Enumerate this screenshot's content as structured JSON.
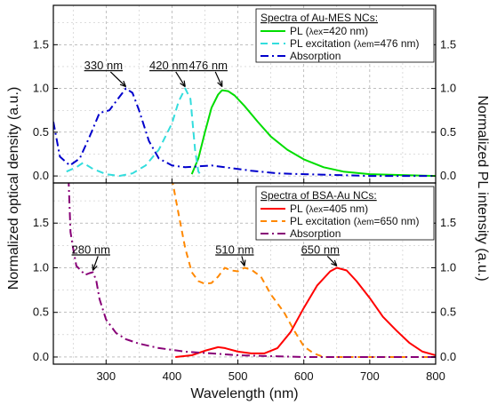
{
  "chart_data": {
    "type": "line",
    "xlabel": "Wavelength (nm)",
    "ylabel_left": "Normalized optical density (a.u.)",
    "ylabel_right": "Normalized PL intensity (a.u.)",
    "xlim": [
      220,
      800
    ],
    "xticks": [
      "300",
      "400",
      "500",
      "600",
      "700",
      "800"
    ],
    "yticks": [
      "0.0",
      "0.5",
      "1.0",
      "1.5"
    ],
    "grid": "dashed",
    "panels": [
      {
        "ylim": [
          -0.08,
          1.95
        ],
        "legend": {
          "title": "Spectra of Au-MES NCs:",
          "placement": "top-right",
          "entries": [
            {
              "pre": "PL (",
              "lam": "λex",
              "post": "=420 nm)"
            },
            {
              "pre": "PL excitation (",
              "lam": "λem",
              "post": "=476 nm)"
            },
            {
              "pre": "Absorption",
              "lam": "",
              "post": ""
            }
          ]
        },
        "annotations": [
          {
            "text": "330 nm",
            "x": 330,
            "y": 1.0,
            "tx": 296,
            "ty": 1.22
          },
          {
            "text": "420 nm",
            "x": 420,
            "y": 1.0,
            "tx": 395,
            "ty": 1.22
          },
          {
            "text": "476 nm",
            "x": 476,
            "y": 1.0,
            "tx": 455,
            "ty": 1.22
          }
        ],
        "series": [
          {
            "color": "#00dd00",
            "dash": "",
            "width": 2,
            "points": [
              [
                430,
                0.02
              ],
              [
                440,
                0.2
              ],
              [
                450,
                0.5
              ],
              [
                460,
                0.78
              ],
              [
                470,
                0.93
              ],
              [
                476,
                0.98
              ],
              [
                485,
                0.97
              ],
              [
                495,
                0.92
              ],
              [
                510,
                0.8
              ],
              [
                530,
                0.62
              ],
              [
                550,
                0.45
              ],
              [
                575,
                0.3
              ],
              [
                600,
                0.19
              ],
              [
                630,
                0.1
              ],
              [
                660,
                0.05
              ],
              [
                700,
                0.02
              ],
              [
                750,
                0.01
              ],
              [
                800,
                0.0
              ]
            ]
          },
          {
            "color": "#33dddd",
            "dash": "8,5",
            "width": 2,
            "points": [
              [
                240,
                0.05
              ],
              [
                255,
                0.1
              ],
              [
                265,
                0.15
              ],
              [
                280,
                0.08
              ],
              [
                300,
                0.02
              ],
              [
                320,
                0.0
              ],
              [
                340,
                0.03
              ],
              [
                360,
                0.12
              ],
              [
                380,
                0.3
              ],
              [
                400,
                0.6
              ],
              [
                410,
                0.85
              ],
              [
                420,
                1.0
              ],
              [
                428,
                0.88
              ],
              [
                435,
                0.3
              ],
              [
                440,
                0.05
              ],
              [
                445,
                0.0
              ]
            ]
          },
          {
            "color": "#0000cc",
            "dash": "9,4,2,4",
            "width": 2,
            "points": [
              [
                220,
                0.62
              ],
              [
                230,
                0.22
              ],
              [
                245,
                0.12
              ],
              [
                260,
                0.2
              ],
              [
                275,
                0.45
              ],
              [
                290,
                0.72
              ],
              [
                305,
                0.75
              ],
              [
                320,
                0.9
              ],
              [
                330,
                1.0
              ],
              [
                340,
                0.95
              ],
              [
                350,
                0.75
              ],
              [
                365,
                0.4
              ],
              [
                380,
                0.2
              ],
              [
                400,
                0.12
              ],
              [
                420,
                0.1
              ],
              [
                440,
                0.11
              ],
              [
                460,
                0.12
              ],
              [
                480,
                0.1
              ],
              [
                520,
                0.06
              ],
              [
                560,
                0.03
              ],
              [
                600,
                0.02
              ],
              [
                650,
                0.01
              ],
              [
                700,
                0.0
              ],
              [
                750,
                0.0
              ],
              [
                800,
                0.0
              ]
            ]
          }
        ]
      },
      {
        "ylim": [
          -0.08,
          1.95
        ],
        "legend": {
          "title": "Spectra of BSA-Au NCs:",
          "placement": "top-right",
          "entries": [
            {
              "pre": "PL (",
              "lam": "λex",
              "post": "=405 nm)"
            },
            {
              "pre": "PL excitation (",
              "lam": "λem",
              "post": "=650 nm)"
            },
            {
              "pre": "Absorption",
              "lam": "",
              "post": ""
            }
          ]
        },
        "annotations": [
          {
            "text": "280 nm",
            "x": 280,
            "y": 0.95,
            "tx": 277,
            "ty": 1.16
          },
          {
            "text": "510 nm",
            "x": 510,
            "y": 1.0,
            "tx": 495,
            "ty": 1.16
          },
          {
            "text": "650 nm",
            "x": 650,
            "y": 1.0,
            "tx": 625,
            "ty": 1.16
          }
        ],
        "series": [
          {
            "color": "#ff0000",
            "dash": "",
            "width": 2,
            "points": [
              [
                405,
                0.0
              ],
              [
                430,
                0.02
              ],
              [
                450,
                0.07
              ],
              [
                470,
                0.11
              ],
              [
                480,
                0.1
              ],
              [
                500,
                0.06
              ],
              [
                520,
                0.04
              ],
              [
                540,
                0.04
              ],
              [
                560,
                0.1
              ],
              [
                580,
                0.28
              ],
              [
                600,
                0.55
              ],
              [
                620,
                0.8
              ],
              [
                640,
                0.96
              ],
              [
                650,
                1.0
              ],
              [
                665,
                0.97
              ],
              [
                680,
                0.85
              ],
              [
                700,
                0.66
              ],
              [
                720,
                0.45
              ],
              [
                740,
                0.3
              ],
              [
                760,
                0.16
              ],
              [
                780,
                0.06
              ],
              [
                800,
                0.02
              ]
            ]
          },
          {
            "color": "#ff8800",
            "dash": "7,5",
            "width": 2,
            "points": [
              [
                400,
                2.0
              ],
              [
                410,
                1.6
              ],
              [
                420,
                1.22
              ],
              [
                430,
                0.95
              ],
              [
                440,
                0.85
              ],
              [
                450,
                0.82
              ],
              [
                460,
                0.83
              ],
              [
                470,
                0.9
              ],
              [
                480,
                1.0
              ],
              [
                490,
                0.97
              ],
              [
                500,
                0.96
              ],
              [
                510,
                1.0
              ],
              [
                520,
                0.98
              ],
              [
                535,
                0.9
              ],
              [
                550,
                0.7
              ],
              [
                570,
                0.5
              ],
              [
                585,
                0.3
              ],
              [
                600,
                0.12
              ],
              [
                615,
                0.04
              ],
              [
                630,
                0.0
              ],
              [
                700,
                0.0
              ],
              [
                800,
                0.0
              ]
            ]
          },
          {
            "color": "#880077",
            "dash": "9,4,2,4",
            "width": 2,
            "points": [
              [
                243,
                2.0
              ],
              [
                246,
                1.4
              ],
              [
                250,
                1.22
              ],
              [
                255,
                1.02
              ],
              [
                262,
                0.97
              ],
              [
                268,
                0.92
              ],
              [
                275,
                0.94
              ],
              [
                280,
                0.95
              ],
              [
                285,
                0.86
              ],
              [
                290,
                0.65
              ],
              [
                300,
                0.42
              ],
              [
                315,
                0.27
              ],
              [
                330,
                0.2
              ],
              [
                350,
                0.15
              ],
              [
                380,
                0.1
              ],
              [
                420,
                0.06
              ],
              [
                460,
                0.04
              ],
              [
                500,
                0.02
              ],
              [
                550,
                0.01
              ],
              [
                600,
                0.0
              ],
              [
                800,
                0.0
              ]
            ]
          }
        ]
      }
    ]
  }
}
